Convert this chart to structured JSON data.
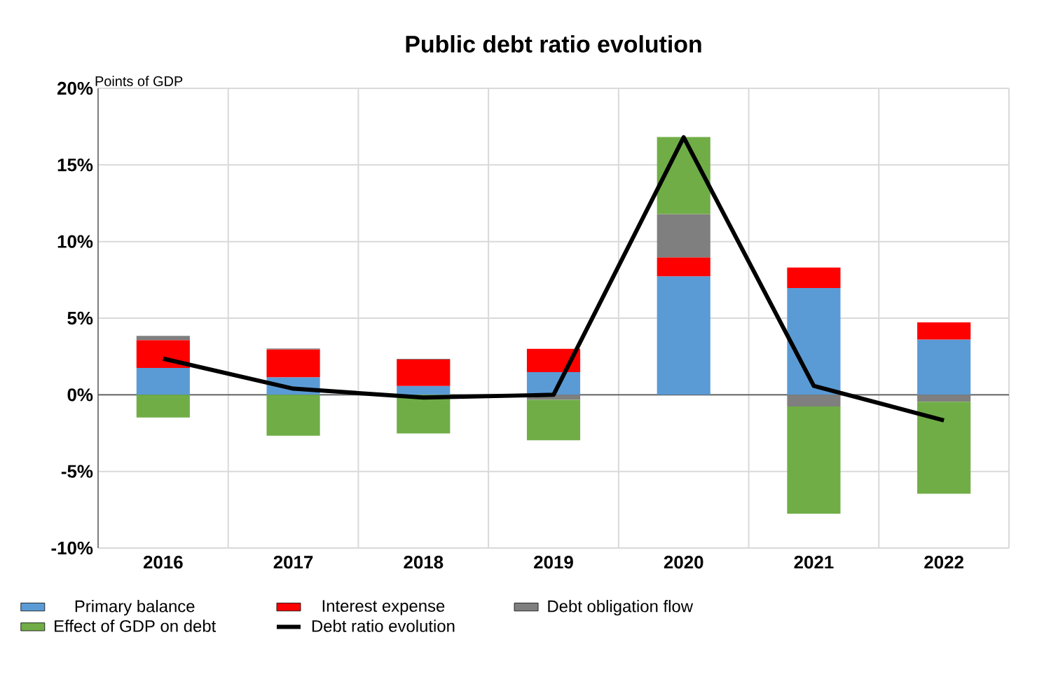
{
  "chart_data": {
    "type": "bar",
    "stacked": true,
    "title": "Public debt ratio evolution",
    "ylabel": "Points of GDP",
    "categories": [
      "2016",
      "2017",
      "2018",
      "2019",
      "2020",
      "2021",
      "2022"
    ],
    "series": [
      {
        "name": "Primary balance",
        "color": "#5b9bd5",
        "values": [
          1.75,
          1.15,
          0.58,
          1.48,
          7.73,
          6.97,
          3.61
        ]
      },
      {
        "name": "Interest expense",
        "color": "#ff0000",
        "values": [
          1.82,
          1.82,
          1.72,
          1.52,
          1.24,
          1.33,
          1.12
        ]
      },
      {
        "name": "Debt obligation flow",
        "color": "#7f7f7f",
        "values": [
          0.28,
          0.05,
          0.05,
          -0.33,
          2.82,
          -0.76,
          -0.45
        ]
      },
      {
        "name": "Effect of GDP on debt",
        "color": "#70ad47",
        "values": [
          -1.48,
          -2.67,
          -2.52,
          -2.64,
          5.03,
          -7.0,
          -6.0
        ]
      },
      {
        "name": "Debt ratio evolution",
        "type": "line",
        "color": "#000000",
        "values": [
          2.36,
          0.4,
          -0.18,
          0.0,
          16.8,
          0.58,
          -1.67
        ]
      }
    ],
    "ylim": [
      -10,
      20
    ],
    "yticks": [
      {
        "value": -10,
        "label": "-10%"
      },
      {
        "value": -5,
        "label": "-5%"
      },
      {
        "value": 0,
        "label": "0%"
      },
      {
        "value": 5,
        "label": "5%"
      },
      {
        "value": 10,
        "label": "10%"
      },
      {
        "value": 15,
        "label": "15%"
      },
      {
        "value": 20,
        "label": "20%"
      }
    ],
    "grid": true,
    "legend": "bottom",
    "marker": "none",
    "line_style": "solid"
  }
}
